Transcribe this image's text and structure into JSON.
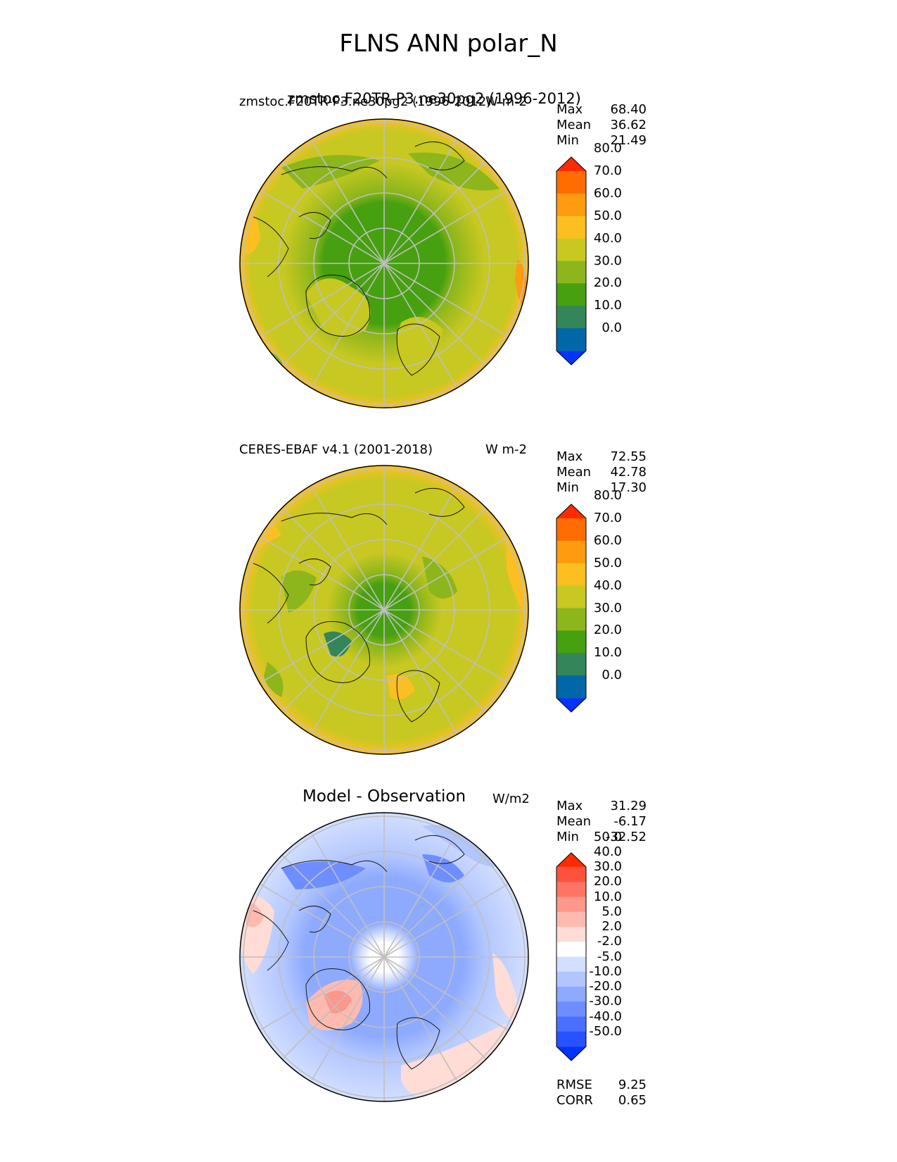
{
  "figure_title": "FLNS ANN polar_N",
  "panels": [
    {
      "left_label": "zmstoc.F20TR-P3.ne30pg2 (1996-2012)",
      "right_label": "W m-2",
      "overlay_label": "zmstoc.F20TR-P3.ne30pg2 (1996-2012)",
      "stats": [
        {
          "label": "Max",
          "value": "68.40"
        },
        {
          "label": "Mean",
          "value": "36.62"
        },
        {
          "label": "Min",
          "value": "21.49"
        }
      ],
      "colorbar": {
        "colors": [
          "#0433ff",
          "#0068a6",
          "#348559",
          "#46a00f",
          "#8cb61b",
          "#c8c822",
          "#fbbf22",
          "#fe9b0e",
          "#ff6c00",
          "#ff2b00"
        ],
        "ticks": [
          "0.0",
          "10.0",
          "20.0",
          "30.0",
          "40.0",
          "50.0",
          "60.0",
          "70.0",
          "80.0"
        ]
      }
    },
    {
      "left_label": "CERES-EBAF v4.1 (2001-2018)",
      "right_label": "W m-2",
      "stats": [
        {
          "label": "Max",
          "value": "72.55"
        },
        {
          "label": "Mean",
          "value": "42.78"
        },
        {
          "label": "Min",
          "value": "17.30"
        }
      ],
      "colorbar": {
        "colors": [
          "#0433ff",
          "#0068a6",
          "#348559",
          "#46a00f",
          "#8cb61b",
          "#c8c822",
          "#fbbf22",
          "#fe9b0e",
          "#ff6c00",
          "#ff2b00"
        ],
        "ticks": [
          "0.0",
          "10.0",
          "20.0",
          "30.0",
          "40.0",
          "50.0",
          "60.0",
          "70.0",
          "80.0"
        ]
      }
    },
    {
      "title": "Model - Observation",
      "right_label": "W/m2",
      "stats": [
        {
          "label": "Max",
          "value": "31.29"
        },
        {
          "label": "Mean",
          "value": "-6.17"
        },
        {
          "label": "Min",
          "value": "-32.52"
        }
      ],
      "colorbar": {
        "colors": [
          "#0433ff",
          "#2752ff",
          "#4b70ff",
          "#6e8eff",
          "#8eaaff",
          "#b1c5ff",
          "#d3dfff",
          "#ffffff",
          "#ffdcd6",
          "#ffbab0",
          "#ff978a",
          "#ff7563",
          "#ff523d",
          "#ff2b00"
        ],
        "ticks": [
          "-50.0",
          "-40.0",
          "-30.0",
          "-20.0",
          "-10.0",
          "-5.0",
          "-2.0",
          "2.0",
          "5.0",
          "10.0",
          "20.0",
          "30.0",
          "40.0",
          "50.0"
        ]
      },
      "metrics": [
        {
          "label": "RMSE",
          "value": "9.25"
        },
        {
          "label": "CORR",
          "value": "0.65"
        }
      ]
    }
  ]
}
